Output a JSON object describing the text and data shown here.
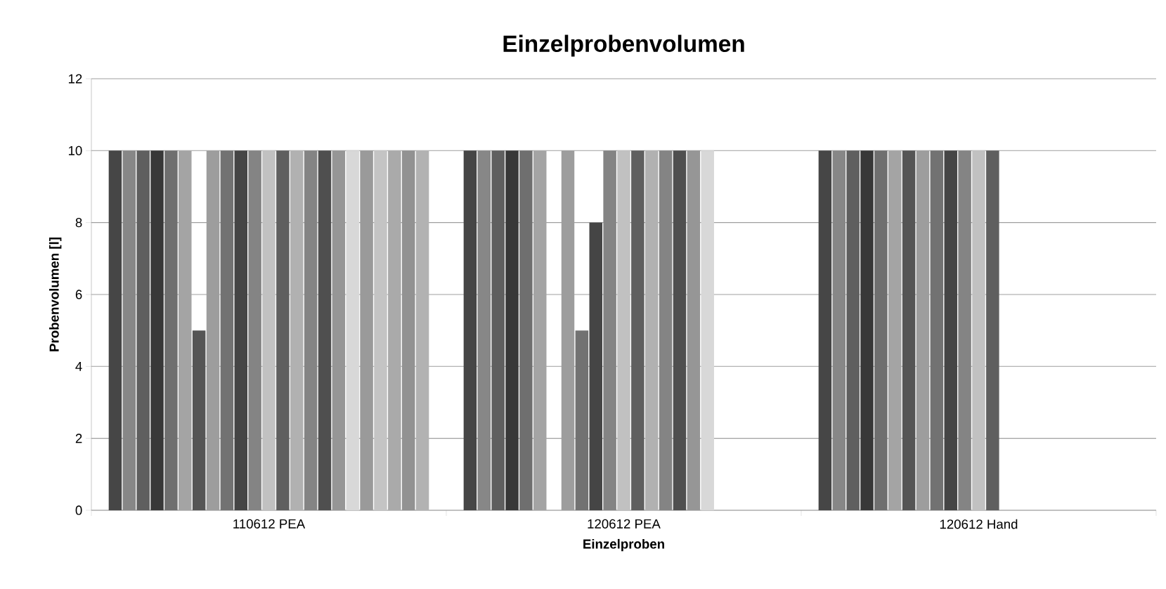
{
  "chart_data": {
    "type": "bar",
    "title": "Einzelprobenvolumen",
    "xlabel": "Einzelproben",
    "ylabel": "Probenvolumen [l]",
    "categories": [
      "110612 PEA",
      "120612 PEA",
      "120612 Hand"
    ],
    "ylim": [
      0,
      12
    ],
    "yticks": [
      0,
      2,
      4,
      6,
      8,
      10,
      12
    ],
    "grid": "y",
    "series": [
      {
        "color": "#464646",
        "values": [
          10,
          10,
          10
        ]
      },
      {
        "color": "#878787",
        "values": [
          10,
          10,
          10
        ]
      },
      {
        "color": "#5f5f5f",
        "values": [
          10,
          10,
          10
        ]
      },
      {
        "color": "#383838",
        "values": [
          10,
          10,
          10
        ]
      },
      {
        "color": "#6f6f6f",
        "values": [
          10,
          10,
          10
        ]
      },
      {
        "color": "#a4a4a4",
        "values": [
          10,
          10,
          10
        ]
      },
      {
        "color": "#555555",
        "values": [
          5,
          null,
          10
        ]
      },
      {
        "color": "#9d9d9d",
        "values": [
          10,
          10,
          10
        ]
      },
      {
        "color": "#727272",
        "values": [
          10,
          5,
          10
        ]
      },
      {
        "color": "#454545",
        "values": [
          10,
          8,
          10
        ]
      },
      {
        "color": "#848484",
        "values": [
          10,
          10,
          10
        ]
      },
      {
        "color": "#c1c1c1",
        "values": [
          10,
          10,
          10
        ]
      },
      {
        "color": "#5f5f5f",
        "values": [
          10,
          10,
          10
        ]
      },
      {
        "color": "#b1b1b1",
        "values": [
          10,
          10,
          null
        ]
      },
      {
        "color": "#848484",
        "values": [
          10,
          10,
          null
        ]
      },
      {
        "color": "#4f4f4f",
        "values": [
          10,
          10,
          null
        ]
      },
      {
        "color": "#969696",
        "values": [
          10,
          10,
          null
        ]
      },
      {
        "color": "#d8d8d8",
        "values": [
          10,
          10,
          null
        ]
      },
      {
        "color": "#9a9a9a",
        "values": [
          10,
          null,
          null
        ]
      },
      {
        "color": "#c4c4c4",
        "values": [
          10,
          null,
          null
        ]
      },
      {
        "color": "#aaaaaa",
        "values": [
          10,
          null,
          null
        ]
      },
      {
        "color": "#929292",
        "values": [
          10,
          null,
          null
        ]
      },
      {
        "color": "#b2b2b2",
        "values": [
          10,
          null,
          null
        ]
      }
    ]
  }
}
